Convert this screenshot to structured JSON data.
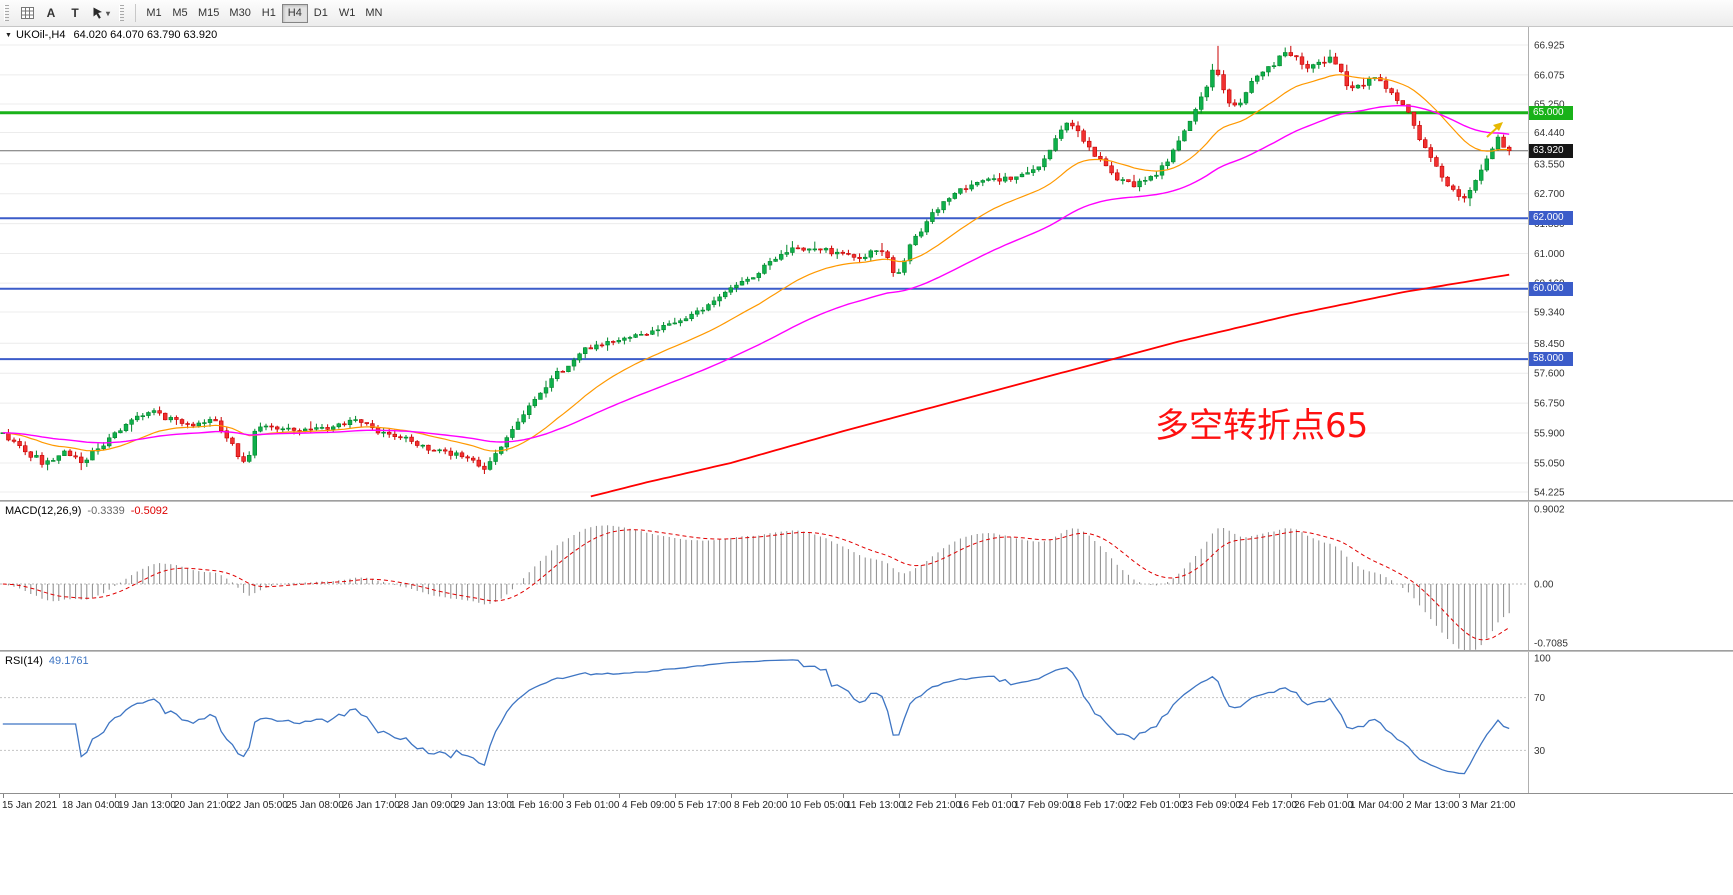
{
  "icons": {
    "collapse": "▼",
    "dropdown": "▾"
  },
  "toolbar": {
    "tool_a": "A",
    "tool_t": "T",
    "timeframes": [
      {
        "label": "M1",
        "active": false
      },
      {
        "label": "M5",
        "active": false
      },
      {
        "label": "M15",
        "active": false
      },
      {
        "label": "M30",
        "active": false
      },
      {
        "label": "H1",
        "active": false
      },
      {
        "label": "H4",
        "active": true
      },
      {
        "label": "D1",
        "active": false
      },
      {
        "label": "W1",
        "active": false
      },
      {
        "label": "MN",
        "active": false
      }
    ]
  },
  "chart": {
    "symbol": "UKOil-,H4",
    "ohlc_text": "64.020 64.070 63.790 63.920"
  },
  "annotation": {
    "text": "多空转折点65",
    "color": "#fe1010"
  },
  "price_axis": {
    "ticks": [
      "66.925",
      "66.075",
      "65.250",
      "64.440",
      "63.550",
      "62.700",
      "61.850",
      "61.000",
      "60.160",
      "59.340",
      "58.450",
      "57.600",
      "56.750",
      "55.900",
      "55.050",
      "54.225"
    ]
  },
  "levels": [
    {
      "value": 65.0,
      "label": "65.000",
      "color": "#19b219",
      "width": 3
    },
    {
      "value": 63.92,
      "label": "63.920",
      "color": "#6e6e6e",
      "width": 1,
      "tag_bg": "#161616",
      "role": "bid"
    },
    {
      "value": 62.0,
      "label": "62.000",
      "color": "#3b5cc9",
      "width": 2
    },
    {
      "value": 60.0,
      "label": "60.000",
      "color": "#3b5cc9",
      "width": 2
    },
    {
      "value": 58.0,
      "label": "58.000",
      "color": "#3b5cc9",
      "width": 2
    }
  ],
  "macd": {
    "title": "MACD(12,26,9)",
    "value_main": "-0.3339",
    "value_signal": "-0.5092",
    "axis": [
      "0.9002",
      "0.00",
      "-0.7085"
    ]
  },
  "rsi": {
    "title": "RSI(14)",
    "value": "49.1761",
    "axis": [
      "100",
      "70",
      "30"
    ]
  },
  "time_axis": {
    "labels": [
      "15 Jan 2021",
      "18 Jan 04:00",
      "19 Jan 13:00",
      "20 Jan 21:00",
      "22 Jan 05:00",
      "25 Jan 08:00",
      "26 Jan 17:00",
      "28 Jan 09:00",
      "29 Jan 13:00",
      "1 Feb 16:00",
      "3 Feb 01:00",
      "4 Feb 09:00",
      "5 Feb 17:00",
      "8 Feb 20:00",
      "10 Feb 05:00",
      "11 Feb 13:00",
      "12 Feb 21:00",
      "16 Feb 01:00",
      "17 Feb 09:00",
      "18 Feb 17:00",
      "22 Feb 01:00",
      "23 Feb 09:00",
      "24 Feb 17:00",
      "26 Feb 01:00",
      "1 Mar 04:00",
      "2 Mar 13:00",
      "3 Mar 21:00"
    ]
  },
  "chart_data": {
    "type": "candlestick",
    "symbol": "UKOil-",
    "timeframe": "H4",
    "bars": 270,
    "y_range": [
      54.225,
      66.925
    ],
    "last_bar_ohlc": {
      "open": 64.02,
      "high": 64.07,
      "low": 63.79,
      "close": 63.92
    },
    "bid_price": 63.92,
    "horizontal_levels": [
      65.0,
      62.0,
      60.0,
      58.0
    ],
    "price_path_anchors": [
      [
        0,
        55.9
      ],
      [
        4,
        55.45
      ],
      [
        8,
        55.05
      ],
      [
        12,
        55.35
      ],
      [
        15,
        55.1
      ],
      [
        18,
        55.5
      ],
      [
        22,
        56.1
      ],
      [
        27,
        56.55
      ],
      [
        30,
        56.3
      ],
      [
        34,
        56.15
      ],
      [
        38,
        56.3
      ],
      [
        41,
        55.7
      ],
      [
        44,
        54.95
      ],
      [
        46,
        56.15
      ],
      [
        50,
        55.95
      ],
      [
        55,
        56.0
      ],
      [
        60,
        56.1
      ],
      [
        64,
        56.25
      ],
      [
        68,
        55.9
      ],
      [
        72,
        55.75
      ],
      [
        76,
        55.45
      ],
      [
        80,
        55.35
      ],
      [
        84,
        55.15
      ],
      [
        87,
        54.9
      ],
      [
        90,
        55.6
      ],
      [
        93,
        56.3
      ],
      [
        96,
        56.9
      ],
      [
        99,
        57.5
      ],
      [
        102,
        57.9
      ],
      [
        105,
        58.3
      ],
      [
        110,
        58.55
      ],
      [
        115,
        58.75
      ],
      [
        120,
        59.0
      ],
      [
        125,
        59.4
      ],
      [
        130,
        59.9
      ],
      [
        134,
        60.3
      ],
      [
        138,
        60.8
      ],
      [
        142,
        61.15
      ],
      [
        146,
        61.1
      ],
      [
        150,
        61.05
      ],
      [
        154,
        60.9
      ],
      [
        158,
        61.15
      ],
      [
        160,
        60.35
      ],
      [
        163,
        61.3
      ],
      [
        166,
        62.0
      ],
      [
        170,
        62.7
      ],
      [
        174,
        63.0
      ],
      [
        178,
        63.1
      ],
      [
        182,
        63.15
      ],
      [
        186,
        63.5
      ],
      [
        189,
        64.3
      ],
      [
        191,
        64.85
      ],
      [
        194,
        64.1
      ],
      [
        197,
        63.6
      ],
      [
        200,
        63.1
      ],
      [
        203,
        62.95
      ],
      [
        206,
        63.2
      ],
      [
        209,
        63.7
      ],
      [
        212,
        64.6
      ],
      [
        215,
        65.5
      ],
      [
        217,
        66.3
      ],
      [
        219,
        65.4
      ],
      [
        221,
        65.1
      ],
      [
        224,
        66.0
      ],
      [
        227,
        66.3
      ],
      [
        230,
        66.8
      ],
      [
        233,
        66.3
      ],
      [
        236,
        66.4
      ],
      [
        238,
        66.55
      ],
      [
        241,
        65.7
      ],
      [
        244,
        65.85
      ],
      [
        246,
        66.0
      ],
      [
        249,
        65.45
      ],
      [
        252,
        64.9
      ],
      [
        255,
        63.8
      ],
      [
        258,
        63.1
      ],
      [
        261,
        62.5
      ],
      [
        263,
        62.9
      ],
      [
        265,
        63.4
      ],
      [
        267,
        64.1
      ],
      [
        268,
        64.35
      ],
      [
        269,
        63.92
      ]
    ],
    "spike_highs": [
      [
        217,
        66.9
      ],
      [
        230,
        66.9
      ],
      [
        238,
        66.7
      ]
    ],
    "moving_averages": [
      {
        "name": "fast",
        "type": "ema",
        "period": 21,
        "color": "#ff9900"
      },
      {
        "name": "medium",
        "type": "ema",
        "period": 55,
        "color": "#ff00ff"
      },
      {
        "name": "slow",
        "type": "anchored",
        "color": "#ff0000",
        "anchors": [
          [
            105,
            54.1
          ],
          [
            115,
            54.5
          ],
          [
            130,
            55.05
          ],
          [
            150,
            55.95
          ],
          [
            170,
            56.8
          ],
          [
            190,
            57.65
          ],
          [
            210,
            58.5
          ],
          [
            230,
            59.25
          ],
          [
            250,
            59.9
          ],
          [
            269,
            60.4
          ]
        ]
      }
    ],
    "macd": {
      "fast": 12,
      "slow": 26,
      "signal_period": 9,
      "last_main": -0.3339,
      "last_signal": -0.5092,
      "axis_max": 0.9002,
      "axis_min": -0.7085
    },
    "rsi": {
      "period": 14,
      "last": 49.1761,
      "levels": [
        70,
        30
      ]
    }
  }
}
